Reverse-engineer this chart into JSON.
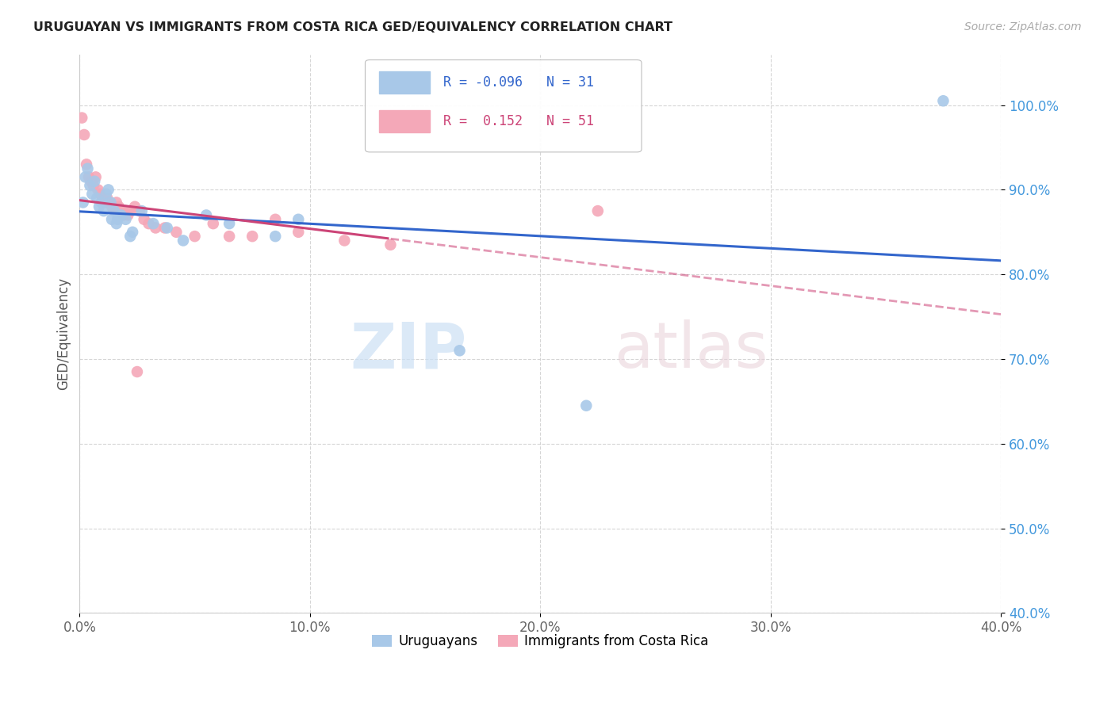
{
  "title": "URUGUAYAN VS IMMIGRANTS FROM COSTA RICA GED/EQUIVALENCY CORRELATION CHART",
  "source": "Source: ZipAtlas.com",
  "ylabel": "GED/Equivalency",
  "xlabel_vals": [
    0.0,
    10.0,
    20.0,
    30.0,
    40.0
  ],
  "ylabel_vals": [
    40.0,
    50.0,
    60.0,
    70.0,
    80.0,
    90.0,
    100.0
  ],
  "xlim": [
    0.0,
    40.0
  ],
  "ylim": [
    40.0,
    106.0
  ],
  "blue_R": -0.096,
  "blue_N": 31,
  "pink_R": 0.152,
  "pink_N": 51,
  "blue_color": "#A8C8E8",
  "pink_color": "#F4A8B8",
  "blue_line_color": "#3366CC",
  "pink_line_color": "#CC4477",
  "blue_label": "Uruguayans",
  "pink_label": "Immigrants from Costa Rica",
  "watermark_zip": "ZIP",
  "watermark_atlas": "atlas",
  "blue_intercept": 88.5,
  "blue_slope": -0.096,
  "pink_intercept": 86.5,
  "pink_slope": 0.35,
  "blue_points_x": [
    0.15,
    0.25,
    0.35,
    0.45,
    0.55,
    0.65,
    0.75,
    0.85,
    0.95,
    1.05,
    1.15,
    1.25,
    1.35,
    1.5,
    1.65,
    1.8,
    2.0,
    2.3,
    2.7,
    3.2,
    3.8,
    4.5,
    5.5,
    6.5,
    9.5,
    37.5
  ],
  "blue_points_y": [
    88.5,
    91.5,
    92.5,
    90.5,
    89.5,
    91.0,
    89.0,
    88.0,
    88.5,
    87.5,
    89.5,
    90.0,
    88.5,
    87.5,
    86.5,
    87.0,
    86.5,
    85.0,
    87.5,
    86.0,
    85.5,
    84.0,
    87.0,
    86.0,
    86.5,
    100.5
  ],
  "blue_points_x2": [
    1.4,
    1.6,
    2.2,
    8.5,
    16.5,
    22.0
  ],
  "blue_points_y2": [
    86.5,
    86.0,
    84.5,
    84.5,
    71.0,
    64.5
  ],
  "pink_points_x": [
    0.1,
    0.2,
    0.3,
    0.4,
    0.5,
    0.6,
    0.7,
    0.8,
    0.9,
    1.0,
    1.1,
    1.2,
    1.3,
    1.4,
    1.5,
    1.6,
    1.7,
    1.8,
    1.9,
    2.0,
    2.1,
    2.2,
    2.4,
    2.6,
    2.8,
    3.0,
    3.3,
    3.7,
    4.2,
    5.0,
    5.8,
    6.5,
    7.5,
    8.5,
    9.5,
    11.5,
    13.5,
    2.5,
    22.5
  ],
  "pink_points_y": [
    98.5,
    96.5,
    93.0,
    91.5,
    91.0,
    90.5,
    91.5,
    90.0,
    89.5,
    89.0,
    88.5,
    89.0,
    88.5,
    88.0,
    88.0,
    88.5,
    88.0,
    87.5,
    87.0,
    87.5,
    87.0,
    87.5,
    88.0,
    87.5,
    86.5,
    86.0,
    85.5,
    85.5,
    85.0,
    84.5,
    86.0,
    84.5,
    84.5,
    86.5,
    85.0,
    84.0,
    83.5,
    68.5,
    87.5
  ],
  "pink_solid_xmax": 13.5,
  "legend_R_blue": "R = -0.096",
  "legend_N_blue": "N = 31",
  "legend_R_pink": "R =  0.152",
  "legend_N_pink": "N = 51"
}
